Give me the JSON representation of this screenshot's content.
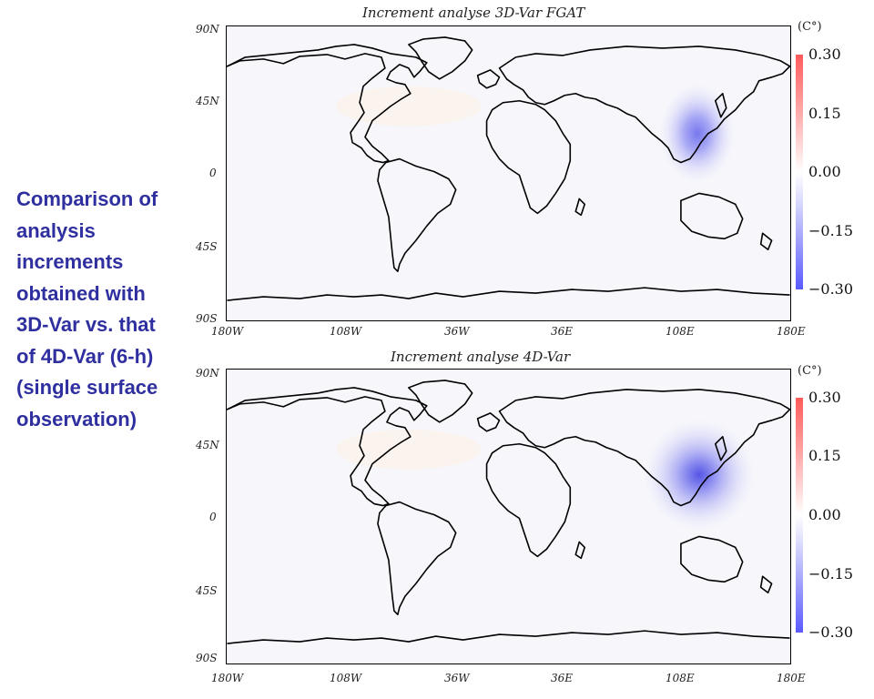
{
  "caption_lines": [
    "Comparison of",
    "analysis",
    "increments",
    "obtained with",
    "3D-Var vs. that",
    "of 4D-Var (6-h)",
    "(single surface",
    "observation)"
  ],
  "panels": [
    {
      "title": "Increment analyse 3D-Var FGAT",
      "increment_region": "east-asia",
      "peak_strength": "moderate"
    },
    {
      "title": "Increment analyse 4D-Var",
      "increment_region": "east-asia",
      "peak_strength": "stronger"
    }
  ],
  "lat_labels": [
    "90N",
    "45N",
    "0",
    "45S",
    "90S"
  ],
  "lon_labels": [
    "180W",
    "108W",
    "36W",
    "36E",
    "108E",
    "180E"
  ],
  "colorbar": {
    "unit": "(C°)",
    "labels": [
      "0.30",
      "0.15",
      "0.00",
      "−0.15",
      "−0.30"
    ],
    "colors": {
      "max": "#ff5a5a",
      "zero": "#ffffff",
      "min": "#5a5aff"
    }
  }
}
